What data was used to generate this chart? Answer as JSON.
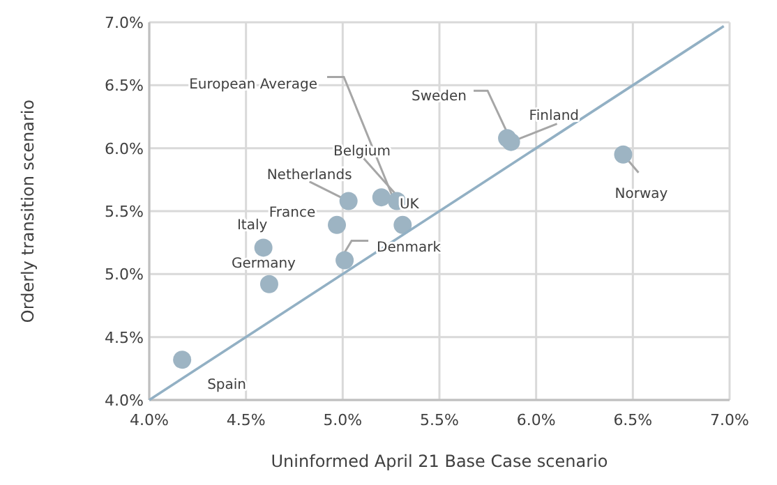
{
  "chart_data": {
    "type": "scatter",
    "xlabel": "Uninformed April 21 Base Case scenario",
    "ylabel": "Orderly transition scenario",
    "xlim": [
      4.0,
      7.0
    ],
    "ylim": [
      4.0,
      7.0
    ],
    "xticks": [
      {
        "value": 4.0,
        "label": "4.0%"
      },
      {
        "value": 4.5,
        "label": "4.5%"
      },
      {
        "value": 5.0,
        "label": "5.0%"
      },
      {
        "value": 5.5,
        "label": "5.5%"
      },
      {
        "value": 6.0,
        "label": "6.0%"
      },
      {
        "value": 6.5,
        "label": "6.5%"
      },
      {
        "value": 7.0,
        "label": "7.0%"
      }
    ],
    "yticks": [
      {
        "value": 4.0,
        "label": "4.0%"
      },
      {
        "value": 4.5,
        "label": "4.5%"
      },
      {
        "value": 5.0,
        "label": "5.0%"
      },
      {
        "value": 5.5,
        "label": "5.5%"
      },
      {
        "value": 6.0,
        "label": "6.0%"
      },
      {
        "value": 6.5,
        "label": "6.5%"
      },
      {
        "value": 7.0,
        "label": "7.0%"
      }
    ],
    "grid": true,
    "series": [
      {
        "marker": "circle",
        "color": "#9db4c3",
        "x": [
          4.17,
          4.62,
          4.59,
          4.97,
          5.03,
          5.01,
          5.2,
          5.28,
          5.31,
          5.85,
          5.87,
          6.45
        ],
        "values": [
          4.32,
          4.92,
          5.21,
          5.39,
          5.58,
          5.11,
          5.61,
          5.58,
          5.39,
          6.08,
          6.05,
          5.95
        ]
      },
      {
        "type": "line",
        "color": "#92b0c4",
        "x": [
          4.0,
          6.97
        ],
        "values": [
          4.0,
          6.97
        ]
      }
    ],
    "annotations": [
      {
        "text": "Spain",
        "x": 4.17,
        "y": 4.32
      },
      {
        "text": "Italy",
        "x": 4.59,
        "y": 5.21
      },
      {
        "text": "Germany",
        "x": 4.62,
        "y": 4.92
      },
      {
        "text": "France",
        "x": 4.97,
        "y": 5.39
      },
      {
        "text": "Netherlands",
        "x": 5.03,
        "y": 5.58
      },
      {
        "text": "Denmark",
        "x": 5.01,
        "y": 5.11
      },
      {
        "text": "European Average",
        "x": 5.28,
        "y": 5.58
      },
      {
        "text": "Belgium",
        "x": 5.28,
        "y": 5.58
      },
      {
        "text": "UK",
        "x": 5.28,
        "y": 5.58
      },
      {
        "text": "Sweden",
        "x": 5.85,
        "y": 6.08
      },
      {
        "text": "Finland",
        "x": 5.87,
        "y": 6.05
      },
      {
        "text": "Norway",
        "x": 6.45,
        "y": 5.95
      }
    ]
  }
}
